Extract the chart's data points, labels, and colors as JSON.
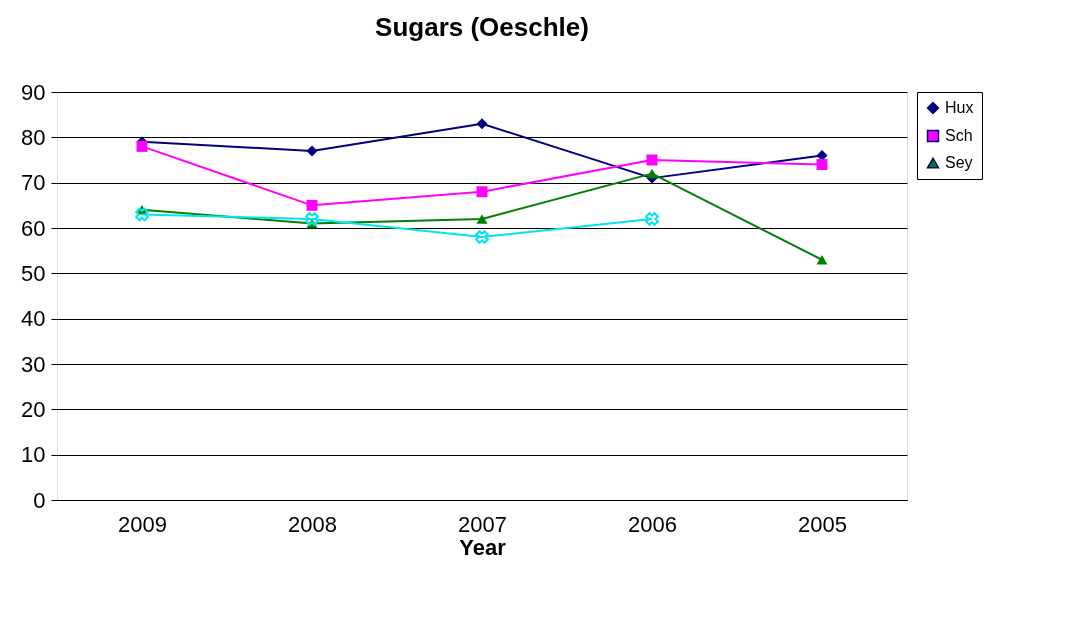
{
  "chart_data": {
    "type": "line",
    "title": "Sugars (Oeschle)",
    "xlabel": "Year",
    "categories": [
      "2009",
      "2008",
      "2007",
      "2006",
      "2005"
    ],
    "series": [
      {
        "name": "Hux",
        "color": "#000080",
        "marker": "diamond",
        "values": [
          79,
          77,
          83,
          71,
          76
        ]
      },
      {
        "name": "Sch",
        "color": "#ff00ff",
        "marker": "square",
        "values": [
          78,
          65,
          68,
          75,
          74
        ]
      },
      {
        "name": "Sey",
        "color": "#008000",
        "marker": "triangle",
        "values": [
          64,
          61,
          62,
          72,
          53
        ]
      },
      {
        "color": "#00e5ee",
        "marker": "cross",
        "values": [
          63,
          62,
          58,
          62,
          null
        ]
      }
    ],
    "ylim": [
      0,
      90
    ],
    "yticks": [
      0,
      10,
      20,
      30,
      40,
      50,
      60,
      70,
      80,
      90
    ],
    "grid": "y",
    "legend": "top right"
  }
}
